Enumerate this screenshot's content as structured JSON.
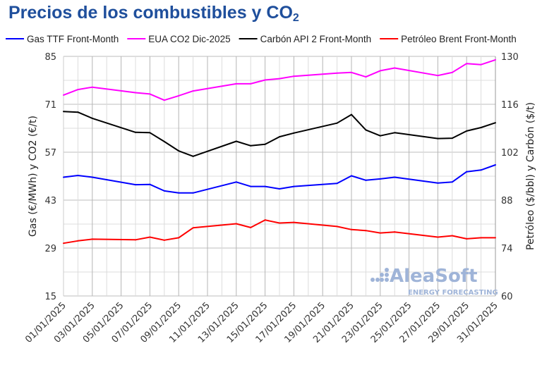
{
  "chart_data": {
    "type": "line",
    "title": "Precios de los combustibles y CO",
    "title_subscript": "2",
    "ylabel": "Gas (€/MWh) y CO2 (€/t)",
    "ylabel_right": "Petróleo ($/bbl) y Carbón ($/t)",
    "ylim": [
      15,
      85
    ],
    "ylim_right": [
      60,
      130
    ],
    "yticks": [
      "15",
      "29",
      "43",
      "57",
      "71",
      "85"
    ],
    "yticks_right": [
      "60",
      "74",
      "88",
      "102",
      "116",
      "130"
    ],
    "xticks": [
      "01/01/2025",
      "03/01/2025",
      "05/01/2025",
      "07/01/2025",
      "09/01/2025",
      "11/01/2025",
      "13/01/2025",
      "15/01/2025",
      "17/01/2025",
      "19/01/2025",
      "21/01/2025",
      "23/01/2025",
      "25/01/2025",
      "27/01/2025",
      "29/01/2025",
      "31/01/2025"
    ],
    "grid": true,
    "legend_position": "top",
    "x_days": [
      1,
      2,
      3,
      6,
      7,
      8,
      9,
      10,
      13,
      14,
      15,
      16,
      17,
      20,
      21,
      22,
      23,
      24,
      27,
      28,
      29,
      30,
      31
    ],
    "series": [
      {
        "name": "Gas TTF Front-Month",
        "color": "#0000ff",
        "axis": "left",
        "values": [
          49.7,
          50.2,
          49.7,
          47.5,
          47.6,
          45.7,
          45.1,
          45.1,
          48.3,
          47.0,
          47.0,
          46.3,
          47.0,
          47.9,
          50.1,
          48.8,
          49.2,
          49.7,
          48.0,
          48.3,
          51.3,
          51.8,
          53.3
        ]
      },
      {
        "name": "EUA CO2 Dic-2025",
        "color": "#ff00ff",
        "axis": "left",
        "values": [
          73.7,
          75.3,
          76.0,
          74.4,
          74.0,
          72.2,
          73.5,
          74.9,
          77.0,
          77.0,
          78.1,
          78.5,
          79.2,
          80.1,
          80.3,
          79.0,
          80.8,
          81.6,
          79.4,
          80.3,
          82.9,
          82.6,
          84.0
        ]
      },
      {
        "name": "Carbón API 2 Front-Month",
        "color": "#000000",
        "axis": "right",
        "values": [
          113.9,
          113.7,
          111.9,
          107.8,
          107.7,
          105.1,
          102.4,
          100.8,
          105.2,
          103.9,
          104.3,
          106.5,
          107.6,
          110.5,
          113.0,
          108.5,
          106.8,
          107.7,
          106.0,
          106.1,
          108.2,
          109.2,
          110.6
        ]
      },
      {
        "name": "Petróleo Brent Front-Month",
        "color": "#ff0000",
        "axis": "right",
        "values": [
          75.4,
          76.1,
          76.6,
          76.4,
          77.2,
          76.3,
          77.0,
          79.9,
          81.1,
          80.0,
          82.2,
          81.3,
          81.5,
          80.3,
          79.4,
          79.1,
          78.4,
          78.7,
          77.2,
          77.6,
          76.7,
          77.0,
          77.0
        ]
      }
    ],
    "watermark": {
      "brand": "AleaSoft",
      "tagline": "ENERGY FORECASTING",
      "color": "#9fb4d8"
    }
  }
}
